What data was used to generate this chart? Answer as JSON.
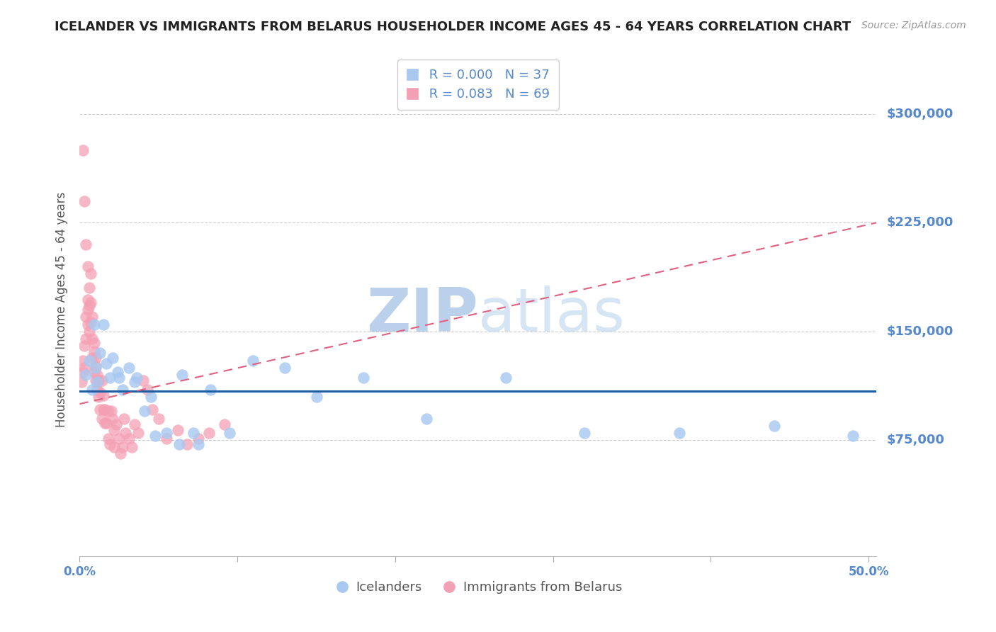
{
  "title": "ICELANDER VS IMMIGRANTS FROM BELARUS HOUSEHOLDER INCOME AGES 45 - 64 YEARS CORRELATION CHART",
  "source": "Source: ZipAtlas.com",
  "ylabel": "Householder Income Ages 45 - 64 years",
  "xlim": [
    0.0,
    0.505
  ],
  "ylim": [
    -5000,
    335000
  ],
  "ytick_vals": [
    75000,
    150000,
    225000,
    300000
  ],
  "ytick_labels_right": [
    "$75,000",
    "$150,000",
    "$225,000",
    "$300,000"
  ],
  "xticks": [
    0.0,
    0.1,
    0.2,
    0.3,
    0.4,
    0.5
  ],
  "xtick_labels": [
    "0.0%",
    "",
    "",
    "",
    "",
    "50.0%"
  ],
  "legend_icelanders": "Icelanders",
  "legend_belarus": "Immigrants from Belarus",
  "R_ice": "0.000",
  "N_ice": "37",
  "R_bel": "0.083",
  "N_bel": "69",
  "color_ice": "#a8c8f0",
  "color_bel": "#f4a0b4",
  "line_color_ice": "#1a5fa8",
  "line_color_bel": "#e06080",
  "title_color": "#222222",
  "axis_label_color": "#5588cc",
  "watermark_color": "#dce8f5",
  "icelanders_x": [
    0.004,
    0.006,
    0.008,
    0.009,
    0.01,
    0.011,
    0.013,
    0.015,
    0.017,
    0.019,
    0.021,
    0.024,
    0.027,
    0.031,
    0.036,
    0.041,
    0.048,
    0.055,
    0.063,
    0.072,
    0.083,
    0.095,
    0.11,
    0.13,
    0.15,
    0.18,
    0.22,
    0.27,
    0.32,
    0.38,
    0.44,
    0.49,
    0.025,
    0.035,
    0.045,
    0.065,
    0.075
  ],
  "icelanders_y": [
    120000,
    130000,
    110000,
    155000,
    125000,
    115000,
    135000,
    155000,
    128000,
    118000,
    132000,
    122000,
    110000,
    125000,
    118000,
    95000,
    78000,
    80000,
    72000,
    80000,
    110000,
    80000,
    130000,
    125000,
    105000,
    118000,
    90000,
    118000,
    80000,
    80000,
    85000,
    78000,
    118000,
    115000,
    105000,
    120000,
    72000
  ],
  "belarus_x": [
    0.001,
    0.002,
    0.002,
    0.003,
    0.003,
    0.004,
    0.004,
    0.005,
    0.005,
    0.005,
    0.006,
    0.006,
    0.006,
    0.007,
    0.007,
    0.007,
    0.008,
    0.008,
    0.008,
    0.009,
    0.009,
    0.009,
    0.01,
    0.01,
    0.01,
    0.011,
    0.011,
    0.012,
    0.012,
    0.013,
    0.013,
    0.014,
    0.014,
    0.015,
    0.015,
    0.016,
    0.016,
    0.017,
    0.018,
    0.018,
    0.019,
    0.02,
    0.021,
    0.022,
    0.022,
    0.023,
    0.025,
    0.026,
    0.027,
    0.028,
    0.029,
    0.031,
    0.033,
    0.035,
    0.037,
    0.04,
    0.043,
    0.046,
    0.05,
    0.055,
    0.062,
    0.068,
    0.075,
    0.082,
    0.092,
    0.002,
    0.003,
    0.004,
    0.005
  ],
  "belarus_y": [
    115000,
    130000,
    122000,
    140000,
    125000,
    160000,
    145000,
    155000,
    172000,
    165000,
    180000,
    150000,
    168000,
    190000,
    170000,
    156000,
    160000,
    145000,
    132000,
    142000,
    122000,
    136000,
    126000,
    116000,
    132000,
    120000,
    110000,
    116000,
    105000,
    96000,
    108000,
    90000,
    116000,
    96000,
    106000,
    87000,
    96000,
    87000,
    76000,
    95000,
    72000,
    95000,
    90000,
    82000,
    70000,
    86000,
    76000,
    66000,
    70000,
    90000,
    80000,
    76000,
    70000,
    86000,
    80000,
    116000,
    110000,
    96000,
    90000,
    76000,
    82000,
    72000,
    76000,
    80000,
    86000,
    275000,
    240000,
    210000,
    195000
  ]
}
